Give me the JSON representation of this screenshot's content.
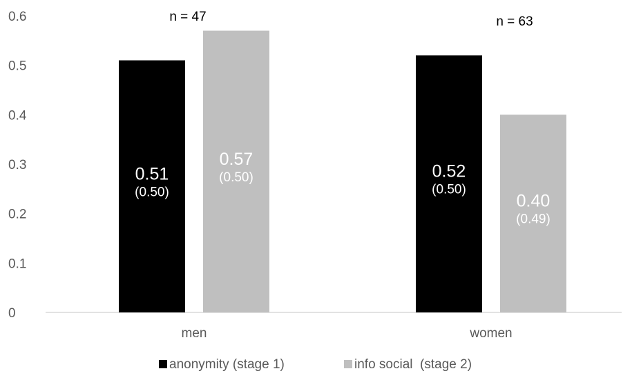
{
  "chart_data": {
    "type": "bar",
    "categories": [
      "men",
      "women"
    ],
    "series": [
      {
        "name": "anonymity (stage 1)",
        "values": [
          0.51,
          0.52
        ],
        "sd_labels": [
          "(0.50)",
          "(0.50)"
        ],
        "value_labels": [
          "0.51",
          "0.52"
        ],
        "color": "#000000",
        "label_color": "#ffffff"
      },
      {
        "name": "info social  (stage 2)",
        "values": [
          0.57,
          0.4
        ],
        "sd_labels": [
          "(0.50)",
          "(0.49)"
        ],
        "value_labels": [
          "0.57",
          "0.40"
        ],
        "color": "#bfbfbf",
        "label_color": "#ffffff"
      }
    ],
    "group_annotations": [
      "n = 47",
      "n = 63"
    ],
    "ylim": [
      0,
      0.6
    ],
    "yticks": [
      0,
      0.1,
      0.2,
      0.3,
      0.4,
      0.5,
      0.6
    ],
    "ytick_labels": [
      "0",
      "0.1",
      "0.2",
      "0.3",
      "0.4",
      "0.5",
      "0.6"
    ],
    "grid": false,
    "legend_position": "bottom",
    "title": "",
    "xlabel": "",
    "ylabel": ""
  }
}
